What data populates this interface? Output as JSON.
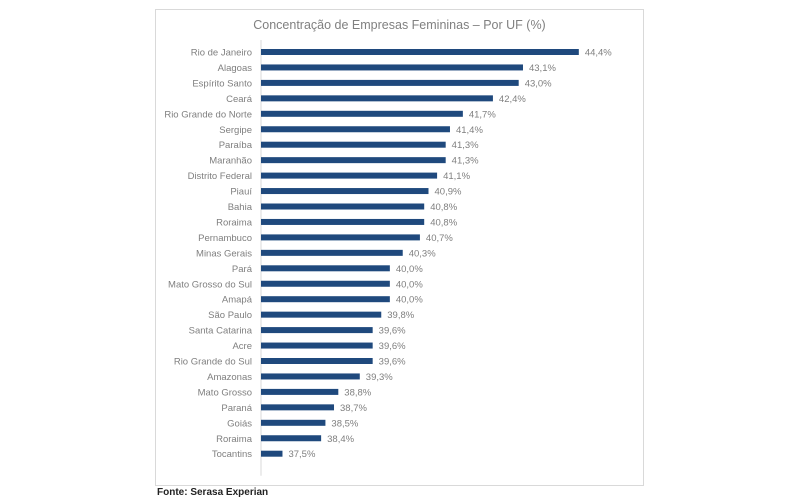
{
  "source_note": "Fonte: Serasa Experian",
  "colors": {
    "bar": "#1f497d",
    "label": "#7f7f7f",
    "axis": "#d9d9d9"
  },
  "chart_data": {
    "type": "bar",
    "orientation": "horizontal",
    "title": "Concentração de Empresas Femininas – Por UF (%)",
    "xlabel": "",
    "ylabel": "",
    "xlim": [
      37.0,
      44.8
    ],
    "grid": false,
    "legend": "none",
    "categories": [
      "Rio de Janeiro",
      "Alagoas",
      "Espírito Santo",
      "Ceará",
      "Rio Grande do Norte",
      "Sergipe",
      "Paraíba",
      "Maranhão",
      "Distrito Federal",
      "Piauí",
      "Bahia",
      "Roraima",
      "Pernambuco",
      "Minas Gerais",
      "Pará",
      "Mato Grosso do Sul",
      "Amapá",
      "São Paulo",
      "Santa Catarina",
      "Acre",
      "Rio Grande do Sul",
      "Amazonas",
      "Mato Grosso",
      "Paraná",
      "Goiás",
      "Roraima",
      "Tocantins"
    ],
    "values": [
      44.4,
      43.1,
      43.0,
      42.4,
      41.7,
      41.4,
      41.3,
      41.3,
      41.1,
      40.9,
      40.8,
      40.8,
      40.7,
      40.3,
      40.0,
      40.0,
      40.0,
      39.8,
      39.6,
      39.6,
      39.6,
      39.3,
      38.8,
      38.7,
      38.5,
      38.4,
      37.5
    ],
    "value_labels": [
      "44,4%",
      "43,1%",
      "43,0%",
      "42,4%",
      "41,7%",
      "41,4%",
      "41,3%",
      "41,3%",
      "41,1%",
      "40,9%",
      "40,8%",
      "40,8%",
      "40,7%",
      "40,3%",
      "40,0%",
      "40,0%",
      "40,0%",
      "39,8%",
      "39,6%",
      "39,6%",
      "39,6%",
      "39,3%",
      "38,8%",
      "38,7%",
      "38,5%",
      "38,4%",
      "37,5%"
    ]
  }
}
